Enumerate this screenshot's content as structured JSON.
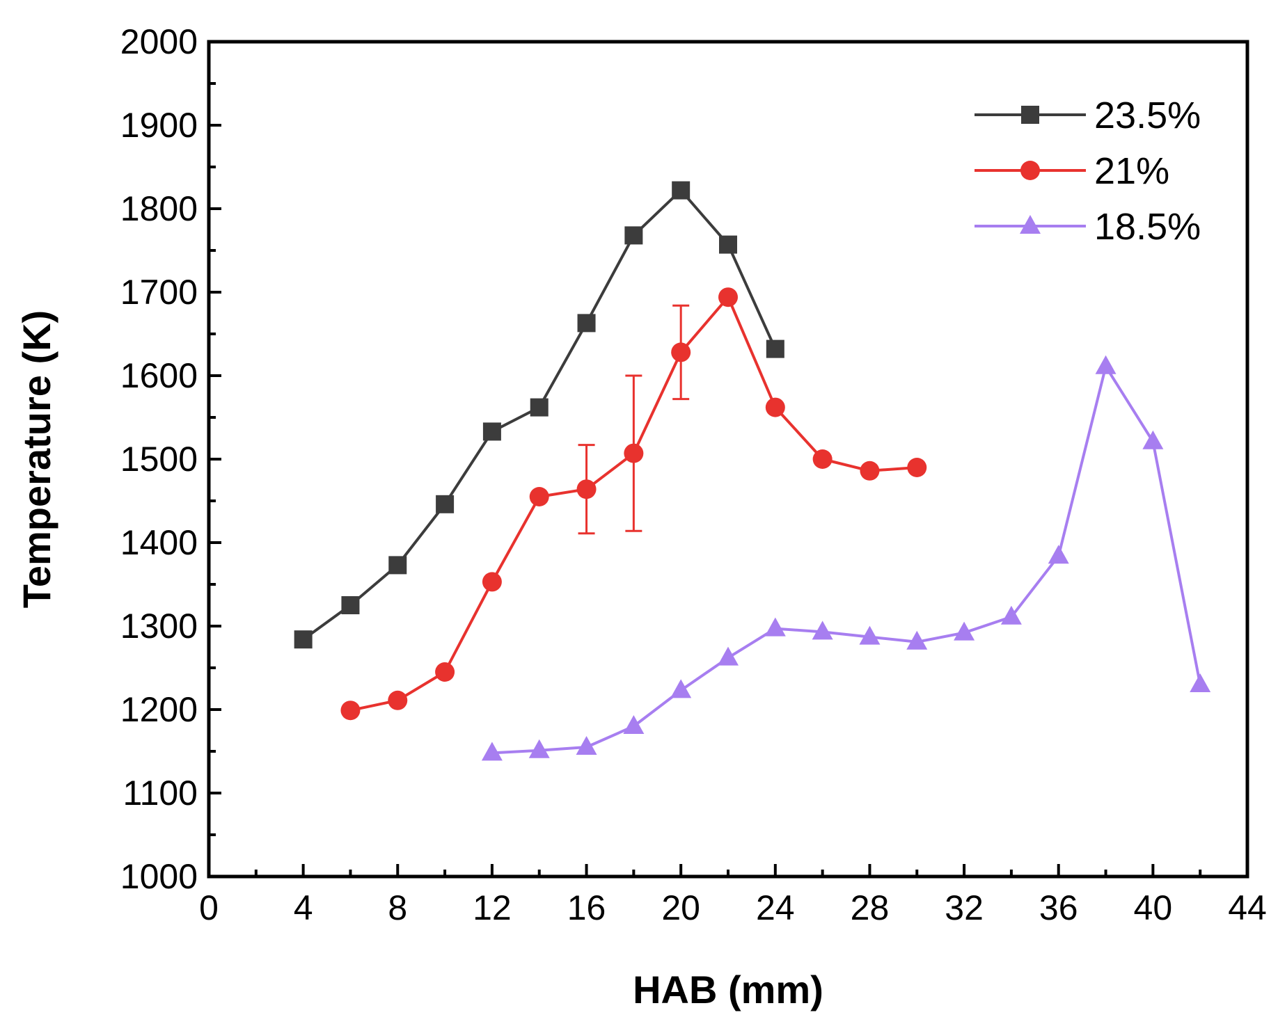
{
  "chart_data": {
    "type": "line",
    "title": "",
    "xlabel": "HAB (mm)",
    "ylabel": "Temperature (K)",
    "xlim": [
      0,
      44
    ],
    "ylim": [
      1000,
      2000
    ],
    "xticks": [
      "0",
      "4",
      "8",
      "12",
      "16",
      "20",
      "24",
      "28",
      "32",
      "36",
      "40",
      "44"
    ],
    "yticks": [
      "1000",
      "1100",
      "1200",
      "1300",
      "1400",
      "1500",
      "1600",
      "1700",
      "1800",
      "1900",
      "2000"
    ],
    "legend_position": "top-right",
    "grid": false,
    "series": [
      {
        "name": "23.5%",
        "color": "#3c3c3c",
        "marker": "square",
        "x": [
          4,
          6,
          8,
          10,
          12,
          14,
          16,
          18,
          20,
          22,
          24
        ],
        "y": [
          1284,
          1325,
          1373,
          1446,
          1533,
          1562,
          1663,
          1768,
          1822,
          1757,
          1632
        ]
      },
      {
        "name": "21%",
        "color": "#e8322e",
        "marker": "circle",
        "x": [
          6,
          8,
          10,
          12,
          14,
          16,
          18,
          20,
          22,
          24,
          26,
          28,
          30
        ],
        "y": [
          1199,
          1211,
          1245,
          1353,
          1455,
          1464,
          1507,
          1628,
          1694,
          1562,
          1500,
          1486,
          1490
        ],
        "error_bars": [
          {
            "x": 16,
            "low": 1411,
            "high": 1517
          },
          {
            "x": 18,
            "low": 1414,
            "high": 1600
          },
          {
            "x": 20,
            "low": 1572,
            "high": 1684
          }
        ]
      },
      {
        "name": "18.5%",
        "color": "#a77ef0",
        "marker": "triangle",
        "x": [
          12,
          14,
          16,
          18,
          20,
          22,
          24,
          26,
          28,
          30,
          32,
          34,
          36,
          38,
          40,
          42
        ],
        "y": [
          1148,
          1151,
          1155,
          1180,
          1223,
          1262,
          1297,
          1293,
          1287,
          1281,
          1292,
          1311,
          1384,
          1611,
          1521,
          1230
        ]
      }
    ]
  }
}
